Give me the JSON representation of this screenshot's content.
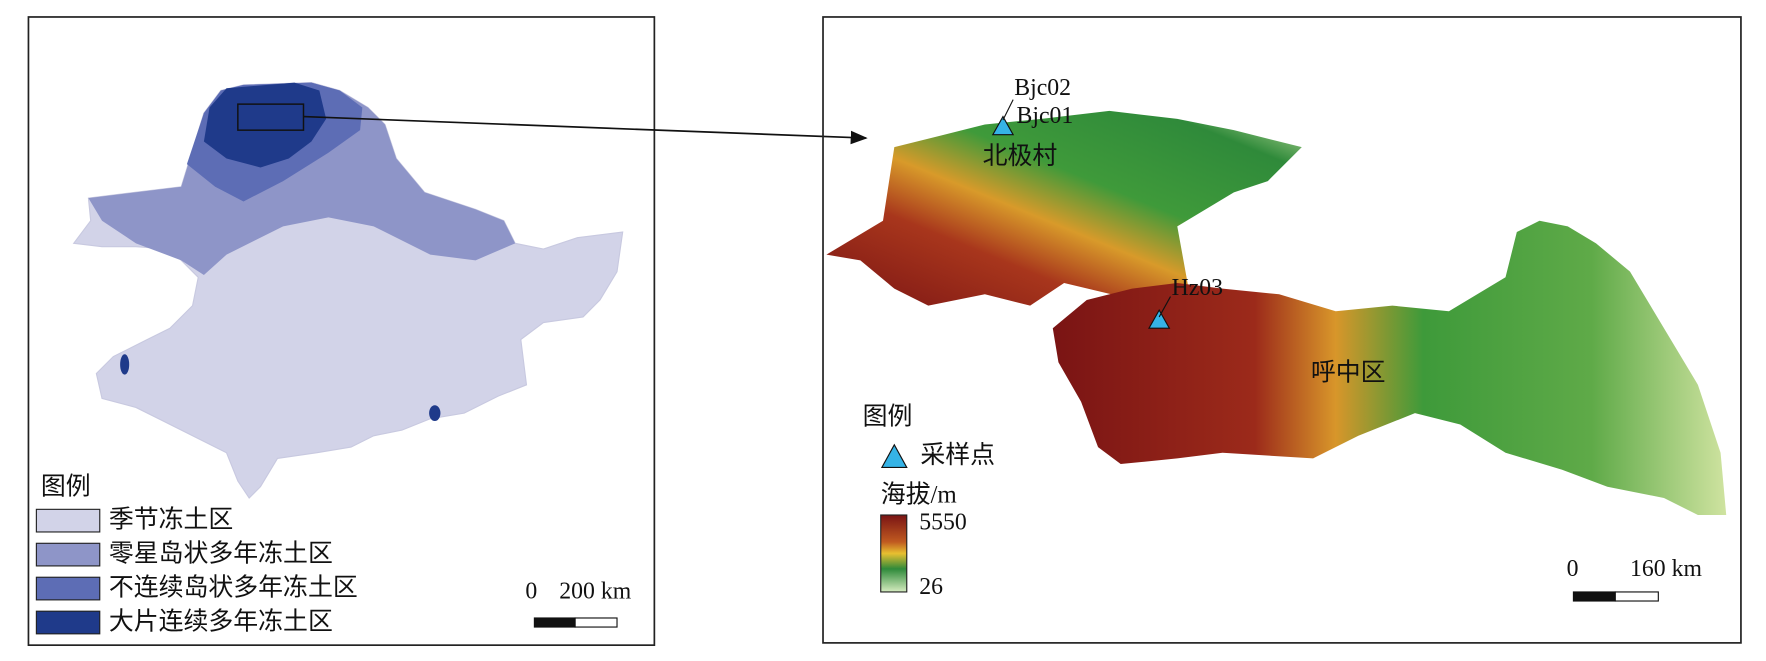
{
  "left_map": {
    "legend": {
      "title": "图例",
      "items": [
        "季节冻土区",
        "零星岛状多年冻土区",
        "不连续岛状多年冻土区",
        "大片连续多年冻土区"
      ]
    },
    "scale_bar": {
      "start": "0",
      "end": "200 km"
    }
  },
  "right_map": {
    "sites": [
      "Bjc02",
      "Bjc01",
      "Hz03"
    ],
    "places": [
      "北极村",
      "呼中区"
    ],
    "legend": {
      "title": "图例",
      "symbol": "采样点",
      "elevation_title": "海拔/m",
      "elevation_max": 5550,
      "elevation_min": 26
    },
    "scale_bar": {
      "start": "0",
      "end": "160 km"
    }
  }
}
